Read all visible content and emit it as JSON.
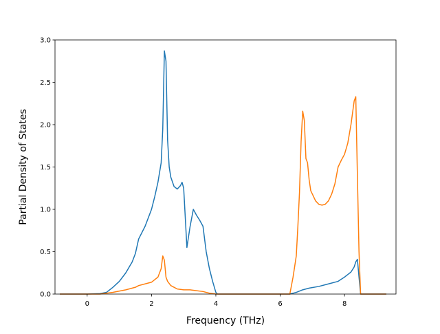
{
  "chart_data": {
    "type": "line",
    "title": "",
    "xlabel": "Frequency (THz)",
    "ylabel": "Partial Density of States",
    "xlim": [
      -1.0,
      9.6
    ],
    "ylim": [
      0.0,
      3.0
    ],
    "xticks": [
      0,
      2,
      4,
      6,
      8
    ],
    "yticks": [
      0.0,
      0.5,
      1.0,
      1.5,
      2.0,
      2.5,
      3.0
    ],
    "xtick_labels": [
      "0",
      "2",
      "4",
      "6",
      "8"
    ],
    "ytick_labels": [
      "0.0",
      "0.5",
      "1.0",
      "1.5",
      "2.0",
      "2.5",
      "3.0"
    ],
    "grid": false,
    "legend": "none",
    "series": [
      {
        "color": "#1f77b4",
        "x": [
          -0.85,
          0.0,
          0.4,
          0.6,
          0.8,
          1.0,
          1.2,
          1.4,
          1.5,
          1.6,
          1.8,
          2.0,
          2.1,
          2.2,
          2.3,
          2.35,
          2.4,
          2.45,
          2.5,
          2.55,
          2.6,
          2.7,
          2.8,
          2.9,
          2.95,
          3.0,
          3.1,
          3.2,
          3.3,
          3.4,
          3.5,
          3.6,
          3.7,
          3.8,
          3.9,
          4.0,
          4.05,
          4.1,
          5.0,
          6.0,
          6.3,
          6.5,
          6.7,
          6.9,
          7.2,
          7.5,
          7.8,
          8.0,
          8.1,
          8.2,
          8.3,
          8.35,
          8.4,
          8.45,
          8.5,
          9.3
        ],
        "y": [
          0.0,
          0.0,
          0.005,
          0.02,
          0.08,
          0.15,
          0.25,
          0.38,
          0.48,
          0.65,
          0.8,
          1.0,
          1.15,
          1.32,
          1.55,
          1.95,
          2.87,
          2.75,
          1.82,
          1.5,
          1.38,
          1.27,
          1.24,
          1.28,
          1.32,
          1.25,
          0.55,
          0.8,
          1.0,
          0.93,
          0.87,
          0.8,
          0.5,
          0.3,
          0.15,
          0.02,
          0.0,
          0.0,
          0.0,
          0.0,
          0.0,
          0.02,
          0.05,
          0.07,
          0.09,
          0.12,
          0.15,
          0.2,
          0.23,
          0.26,
          0.32,
          0.38,
          0.41,
          0.2,
          0.0,
          0.0
        ]
      },
      {
        "color": "#ff7f0e",
        "x": [
          -0.85,
          0.0,
          0.4,
          0.8,
          1.2,
          1.5,
          1.6,
          1.8,
          2.0,
          2.2,
          2.3,
          2.35,
          2.4,
          2.45,
          2.5,
          2.6,
          2.8,
          3.0,
          3.2,
          3.4,
          3.6,
          3.8,
          4.0,
          4.1,
          5.0,
          6.0,
          6.3,
          6.4,
          6.5,
          6.55,
          6.6,
          6.65,
          6.7,
          6.75,
          6.8,
          6.85,
          6.9,
          6.95,
          7.0,
          7.1,
          7.2,
          7.3,
          7.4,
          7.5,
          7.6,
          7.7,
          7.8,
          7.9,
          8.0,
          8.1,
          8.2,
          8.3,
          8.35,
          8.4,
          8.45,
          8.5,
          9.3
        ],
        "y": [
          0.0,
          0.0,
          0.0,
          0.02,
          0.05,
          0.08,
          0.1,
          0.12,
          0.14,
          0.2,
          0.3,
          0.45,
          0.4,
          0.2,
          0.15,
          0.1,
          0.06,
          0.05,
          0.05,
          0.04,
          0.03,
          0.01,
          0.0,
          0.0,
          0.0,
          0.0,
          0.0,
          0.2,
          0.45,
          0.8,
          1.2,
          1.8,
          2.16,
          2.05,
          1.6,
          1.55,
          1.35,
          1.22,
          1.18,
          1.1,
          1.06,
          1.05,
          1.06,
          1.1,
          1.18,
          1.3,
          1.5,
          1.58,
          1.65,
          1.78,
          2.0,
          2.28,
          2.33,
          1.4,
          0.5,
          0.0,
          0.0
        ]
      }
    ]
  }
}
